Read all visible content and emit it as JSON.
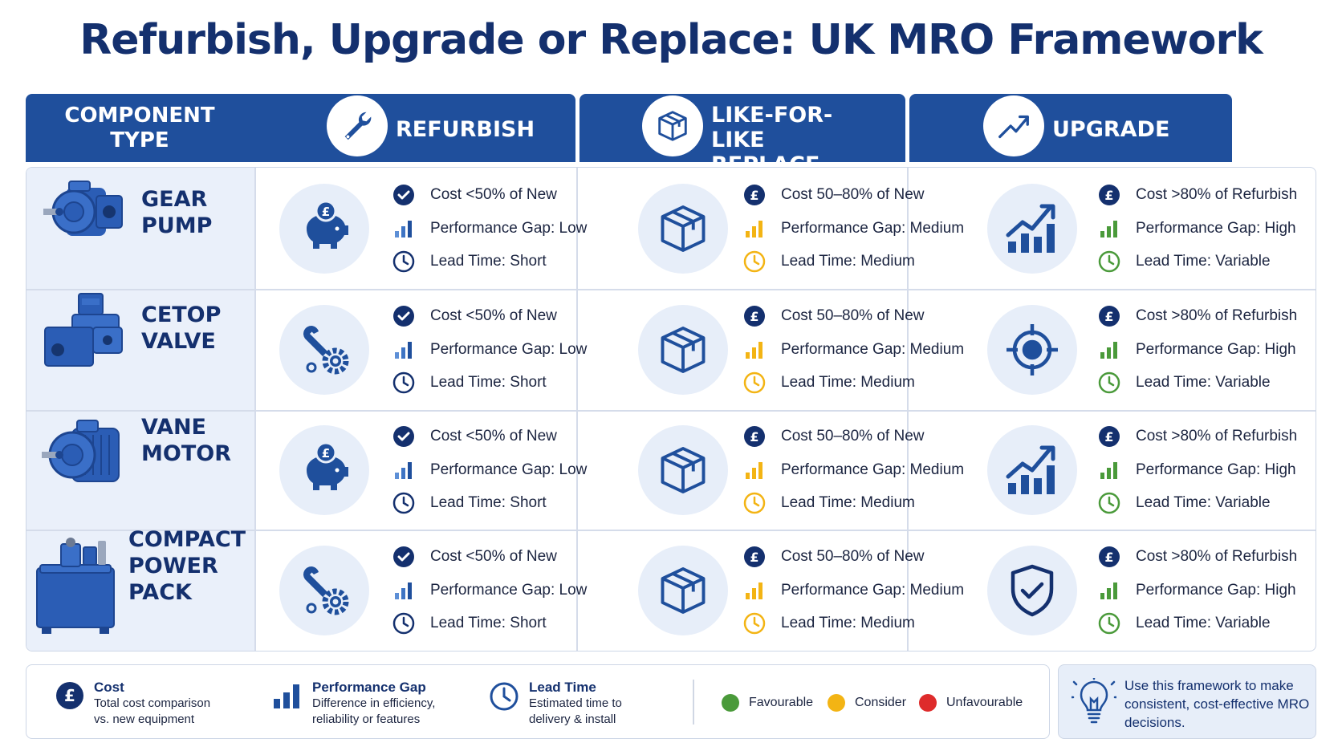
{
  "title": "Refurbish, Upgrade or Replace: UK MRO Framework",
  "colors": {
    "navy": "#1f4f9c",
    "dark": "#14306e",
    "green": "#4a9a3a",
    "amber": "#f3b414",
    "red": "#de2b2b"
  },
  "headers": {
    "component": "COMPONENT TYPE",
    "refurbish": "REFURBISH",
    "replace": "LIKE-FOR-LIKE REPLACE",
    "upgrade": "UPGRADE"
  },
  "header_icons": {
    "refurbish": "wrench-icon",
    "replace": "box-icon",
    "upgrade": "trend-up-icon"
  },
  "rows": [
    {
      "component": "GEAR PUMP",
      "refurbish_icon": "piggy-bank-icon",
      "upgrade_icon": "bar-chart-growth-icon"
    },
    {
      "component": "CETOP VALVE",
      "refurbish_icon": "wrench-gear-icon",
      "upgrade_icon": "target-icon"
    },
    {
      "component": "VANE MOTOR",
      "refurbish_icon": "piggy-bank-icon",
      "upgrade_icon": "bar-chart-growth-icon"
    },
    {
      "component": "COMPACT POWER PACK",
      "refurbish_icon": "wrench-gear-icon",
      "upgrade_icon": "shield-check-icon"
    }
  ],
  "refurbish_bullets": [
    "Cost <50% of New",
    "Performance Gap: Low",
    "Lead Time: Short"
  ],
  "replace_bullets": [
    "Cost 50–80% of New",
    "Performance Gap: Medium",
    "Lead Time: Medium"
  ],
  "upgrade_bullets": [
    "Cost >80% of Refurbish",
    "Performance Gap: High",
    "Lead Time: Variable"
  ],
  "legend": {
    "cost_title": "Cost",
    "cost_desc_1": "Total cost comparison",
    "cost_desc_2": "vs. new equipment",
    "perf_title": "Performance Gap",
    "perf_desc_1": "Difference in efficiency,",
    "perf_desc_2": "reliability or features",
    "lead_title": "Lead Time",
    "lead_desc_1": "Estimated time to",
    "lead_desc_2": "delivery & install",
    "favourable": "Favourable",
    "consider": "Consider",
    "unfavourable": "Unfavourable"
  },
  "tip": "Use this framework to make consistent, cost-effective MRO decisions."
}
